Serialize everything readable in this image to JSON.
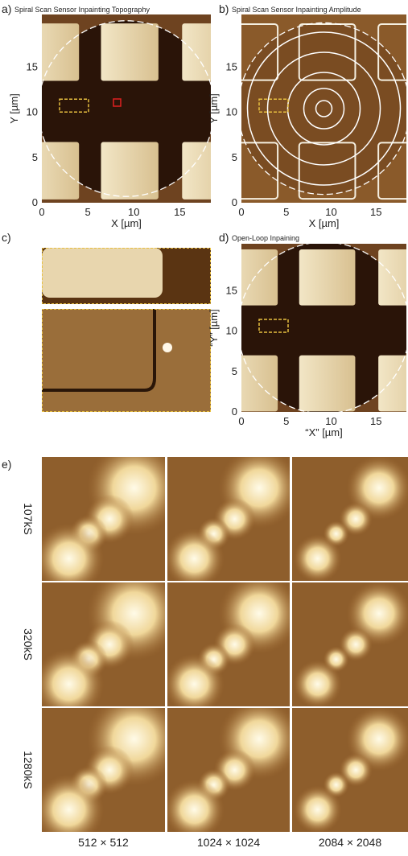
{
  "panels": [
    {
      "label": "a)",
      "title": "Spiral Scan  Sensor Inpainting Topography",
      "x_label": "X [µm]",
      "y_label": "Y [µm]",
      "xticks": [
        0,
        5,
        10,
        15
      ],
      "yticks": [
        0,
        5,
        10,
        15
      ]
    },
    {
      "label": "b)",
      "title": "Spiral Scan Sensor Inpainting Amplitude",
      "x_label": "X [µm]",
      "y_label": "Y [µm]",
      "xticks": [
        0,
        5,
        10,
        15
      ],
      "yticks": [
        0,
        5,
        10,
        15
      ]
    },
    {
      "label": "c)"
    },
    {
      "label": "d)",
      "title": "Open-Loop Inpaining",
      "x_label": "“X” [µm]",
      "y_label": "“Y” [µm]",
      "xticks": [
        0,
        5,
        10,
        15
      ],
      "yticks": [
        0,
        5,
        10,
        15
      ]
    }
  ],
  "grid": {
    "label": "e)",
    "rows": [
      "107kS",
      "320kS",
      "1280kS"
    ],
    "columns": [
      "512 × 512",
      "1024 × 1024",
      "2084 × 2048"
    ]
  }
}
